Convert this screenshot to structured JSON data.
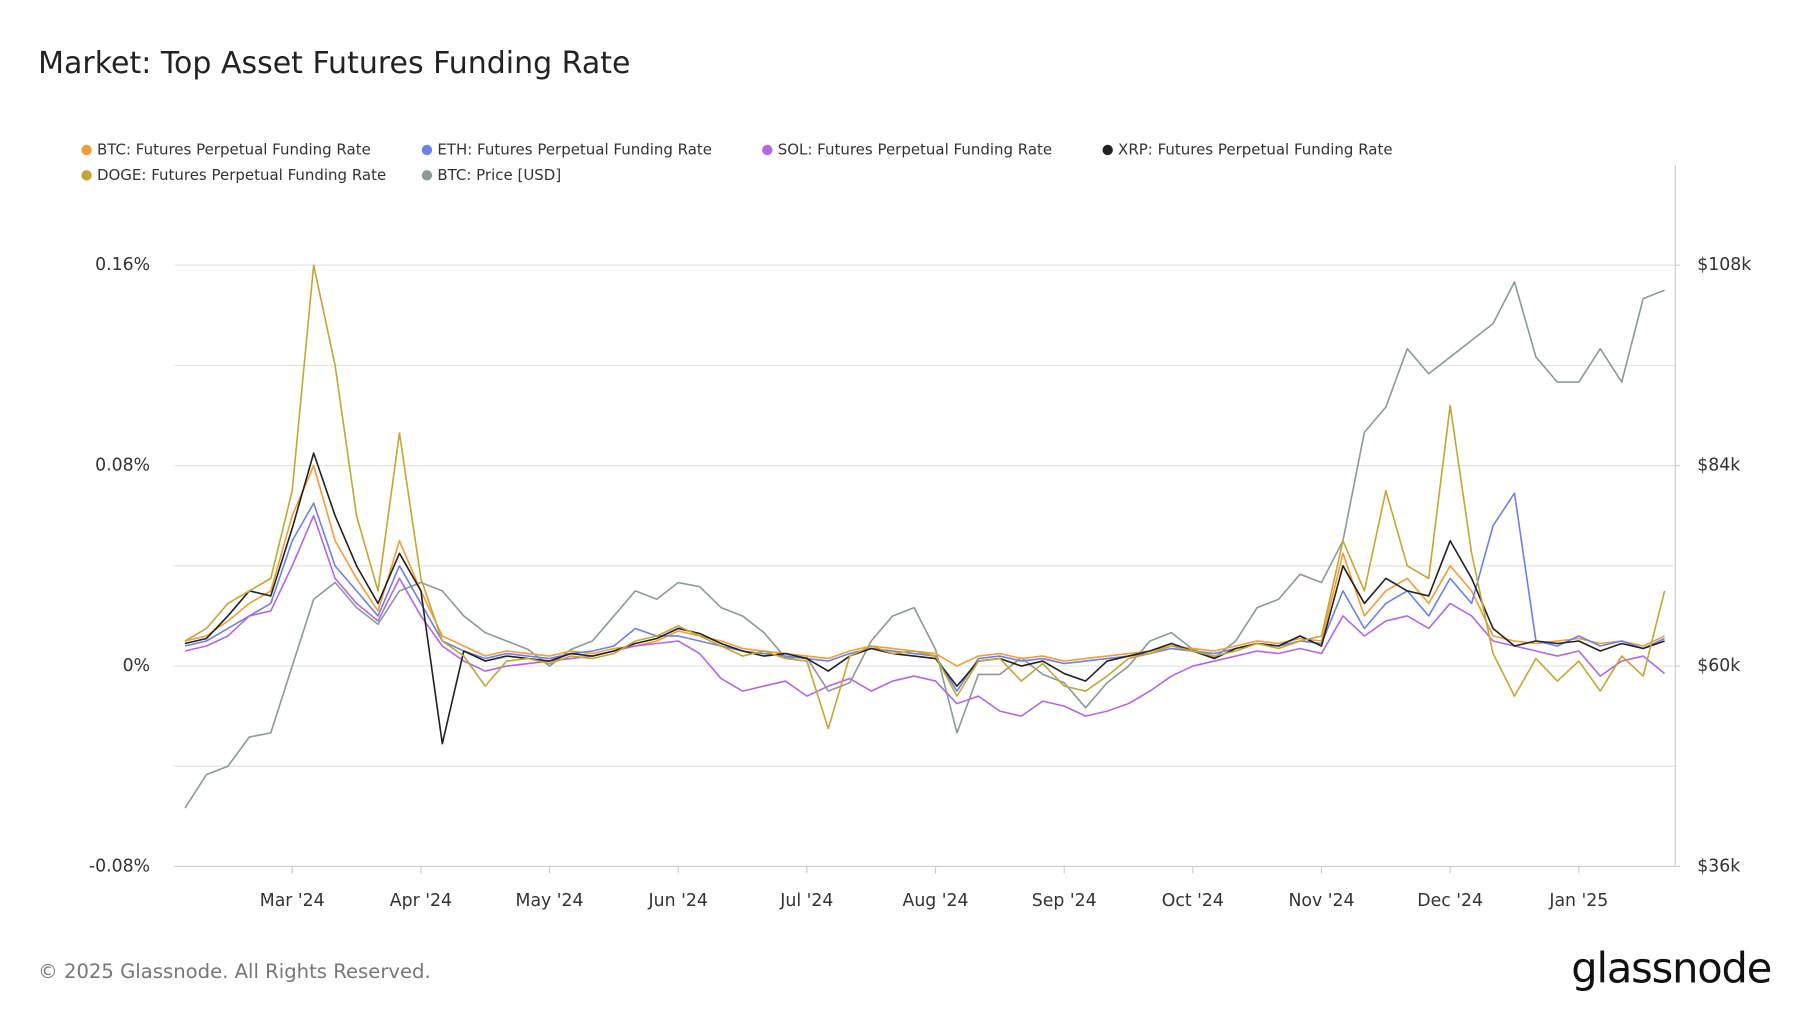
{
  "chart_data": {
    "type": "line",
    "title": "Market: Top Asset Futures Funding Rate",
    "source": "© 2025 Glassnode. All Rights Reserved.",
    "brand": "glassnode",
    "categories": [
      null,
      null,
      null,
      null,
      null,
      "Mar '24",
      null,
      null,
      null,
      null,
      null,
      "Apr '24",
      null,
      null,
      null,
      null,
      null,
      "May '24",
      null,
      null,
      null,
      null,
      null,
      "Jun '24",
      null,
      null,
      null,
      null,
      null,
      "Jul '24",
      null,
      null,
      null,
      null,
      null,
      "Aug '24",
      null,
      null,
      null,
      null,
      null,
      "Sep '24",
      null,
      null,
      null,
      null,
      null,
      "Oct '24",
      null,
      null,
      null,
      null,
      null,
      "Nov '24",
      null,
      null,
      null,
      null,
      null,
      "Dec '24",
      null,
      null,
      null,
      null,
      null,
      "Jan '25",
      null,
      null,
      null,
      null
    ],
    "ylim": [
      -0.08,
      0.2
    ],
    "yticks": [
      {
        "value": -0.08,
        "label": "-0.08%"
      },
      {
        "value": 0,
        "label": "0%"
      },
      {
        "value": 0.08,
        "label": "0.08%"
      },
      {
        "value": 0.16,
        "label": "0.16%"
      }
    ],
    "ygrid": [
      -0.04,
      0.04,
      0.12
    ],
    "y2lim": [
      36000,
      120000
    ],
    "y2ticks": [
      {
        "value": 36000,
        "label": "$36k"
      },
      {
        "value": 60000,
        "label": "$60k"
      },
      {
        "value": 84000,
        "label": "$84k"
      },
      {
        "value": 108000,
        "label": "$108k"
      }
    ],
    "grid": true,
    "series": [
      {
        "name": "BTC: Futures Perpetual Funding Rate",
        "color": "#f39c34",
        "values": [
          0.01,
          0.012,
          0.018,
          0.025,
          0.03,
          0.06,
          0.08,
          0.05,
          0.035,
          0.022,
          0.05,
          0.03,
          0.012,
          0.008,
          0.004,
          0.006,
          0.005,
          0.004,
          0.006,
          0.005,
          0.007,
          0.008,
          0.01,
          0.014,
          0.012,
          0.01,
          0.007,
          0.006,
          0.005,
          0.004,
          0.003,
          0.006,
          0.008,
          0.007,
          0.006,
          0.005,
          0.0,
          0.004,
          0.005,
          0.003,
          0.004,
          0.002,
          0.003,
          0.004,
          0.005,
          0.006,
          0.008,
          0.007,
          0.006,
          0.008,
          0.01,
          0.009,
          0.011,
          0.01,
          0.045,
          0.02,
          0.03,
          0.035,
          0.025,
          0.04,
          0.03,
          0.012,
          0.01,
          0.009,
          0.01,
          0.011,
          0.009,
          0.01,
          0.008,
          0.012
        ]
      },
      {
        "name": "ETH: Futures Perpetual Funding Rate",
        "color": "#6b82e8",
        "values": [
          0.008,
          0.01,
          0.015,
          0.02,
          0.025,
          0.05,
          0.065,
          0.04,
          0.03,
          0.02,
          0.04,
          0.025,
          0.01,
          0.006,
          0.003,
          0.005,
          0.004,
          0.003,
          0.005,
          0.006,
          0.008,
          0.015,
          0.012,
          0.012,
          0.01,
          0.008,
          0.006,
          0.005,
          0.004,
          0.003,
          0.002,
          0.005,
          0.007,
          0.006,
          0.005,
          0.004,
          -0.01,
          0.003,
          0.004,
          0.002,
          0.003,
          0.001,
          0.002,
          0.003,
          0.004,
          0.005,
          0.007,
          0.006,
          0.005,
          0.007,
          0.009,
          0.008,
          0.01,
          0.009,
          0.03,
          0.015,
          0.025,
          0.03,
          0.02,
          0.035,
          0.025,
          0.056,
          0.069,
          0.01,
          0.008,
          0.012,
          0.008,
          0.01,
          0.007,
          0.011
        ]
      },
      {
        "name": "SOL: Futures Perpetual Funding Rate",
        "color": "#b565e8",
        "values": [
          0.006,
          0.008,
          0.012,
          0.02,
          0.022,
          0.04,
          0.06,
          0.035,
          0.025,
          0.018,
          0.035,
          0.02,
          0.008,
          0.002,
          -0.002,
          0.0,
          0.001,
          0.002,
          0.003,
          0.004,
          0.006,
          0.008,
          0.009,
          0.01,
          0.005,
          -0.005,
          -0.01,
          -0.008,
          -0.006,
          -0.012,
          -0.008,
          -0.005,
          -0.01,
          -0.006,
          -0.004,
          -0.006,
          -0.015,
          -0.012,
          -0.018,
          -0.02,
          -0.014,
          -0.016,
          -0.02,
          -0.018,
          -0.015,
          -0.01,
          -0.004,
          0.0,
          0.002,
          0.004,
          0.006,
          0.005,
          0.007,
          0.005,
          0.02,
          0.012,
          0.018,
          0.02,
          0.015,
          0.025,
          0.02,
          0.01,
          0.008,
          0.006,
          0.004,
          0.006,
          -0.004,
          0.002,
          0.004,
          -0.003
        ]
      },
      {
        "name": "XRP: Futures Perpetual Funding Rate",
        "color": "#222222",
        "values": [
          0.009,
          0.011,
          0.02,
          0.03,
          0.028,
          0.055,
          0.085,
          0.06,
          0.04,
          0.025,
          0.045,
          0.03,
          -0.031,
          0.006,
          0.002,
          0.004,
          0.003,
          0.002,
          0.005,
          0.004,
          0.006,
          0.009,
          0.011,
          0.015,
          0.013,
          0.009,
          0.006,
          0.004,
          0.005,
          0.003,
          -0.002,
          0.004,
          0.007,
          0.005,
          0.004,
          0.003,
          -0.008,
          0.002,
          0.003,
          0.0,
          0.002,
          -0.003,
          -0.006,
          0.002,
          0.004,
          0.006,
          0.009,
          0.006,
          0.003,
          0.007,
          0.009,
          0.008,
          0.012,
          0.008,
          0.04,
          0.025,
          0.035,
          0.03,
          0.028,
          0.05,
          0.035,
          0.015,
          0.008,
          0.01,
          0.009,
          0.01,
          0.006,
          0.009,
          0.007,
          0.01
        ]
      },
      {
        "name": "DOGE: Futures Perpetual Funding Rate",
        "color": "#c5a633",
        "values": [
          0.01,
          0.015,
          0.025,
          0.03,
          0.035,
          0.07,
          0.16,
          0.12,
          0.06,
          0.03,
          0.093,
          0.035,
          0.01,
          0.004,
          -0.008,
          0.002,
          0.003,
          0.001,
          0.004,
          0.003,
          0.005,
          0.01,
          0.012,
          0.016,
          0.012,
          0.008,
          0.004,
          0.006,
          0.003,
          0.002,
          -0.025,
          0.004,
          0.008,
          0.005,
          0.006,
          0.004,
          -0.012,
          0.002,
          0.003,
          -0.006,
          0.001,
          -0.008,
          -0.01,
          -0.004,
          0.003,
          0.005,
          0.008,
          0.006,
          0.004,
          0.006,
          0.009,
          0.007,
          0.01,
          0.012,
          0.05,
          0.03,
          0.07,
          0.04,
          0.035,
          0.104,
          0.045,
          0.005,
          -0.012,
          0.003,
          -0.006,
          0.002,
          -0.01,
          0.004,
          -0.004,
          0.03
        ]
      },
      {
        "name": "BTC: Price [USD]",
        "color": "#8a9a9a",
        "axis": "y2",
        "values": [
          43000,
          47000,
          48000,
          51500,
          52000,
          60000,
          68000,
          70000,
          67000,
          65000,
          69000,
          70000,
          69000,
          66000,
          64000,
          63000,
          62000,
          60000,
          62000,
          63000,
          66000,
          69000,
          68000,
          70000,
          69500,
          67000,
          66000,
          64000,
          61000,
          61000,
          57000,
          58000,
          63000,
          66000,
          67000,
          62000,
          52000,
          59000,
          59000,
          61000,
          59000,
          58000,
          55000,
          58000,
          60000,
          63000,
          64000,
          62000,
          61000,
          63000,
          67000,
          68000,
          71000,
          70000,
          75000,
          88000,
          91000,
          98000,
          95000,
          97000,
          99000,
          101000,
          106000,
          97000,
          94000,
          94000,
          98000,
          94000,
          104000,
          105000
        ]
      }
    ]
  }
}
